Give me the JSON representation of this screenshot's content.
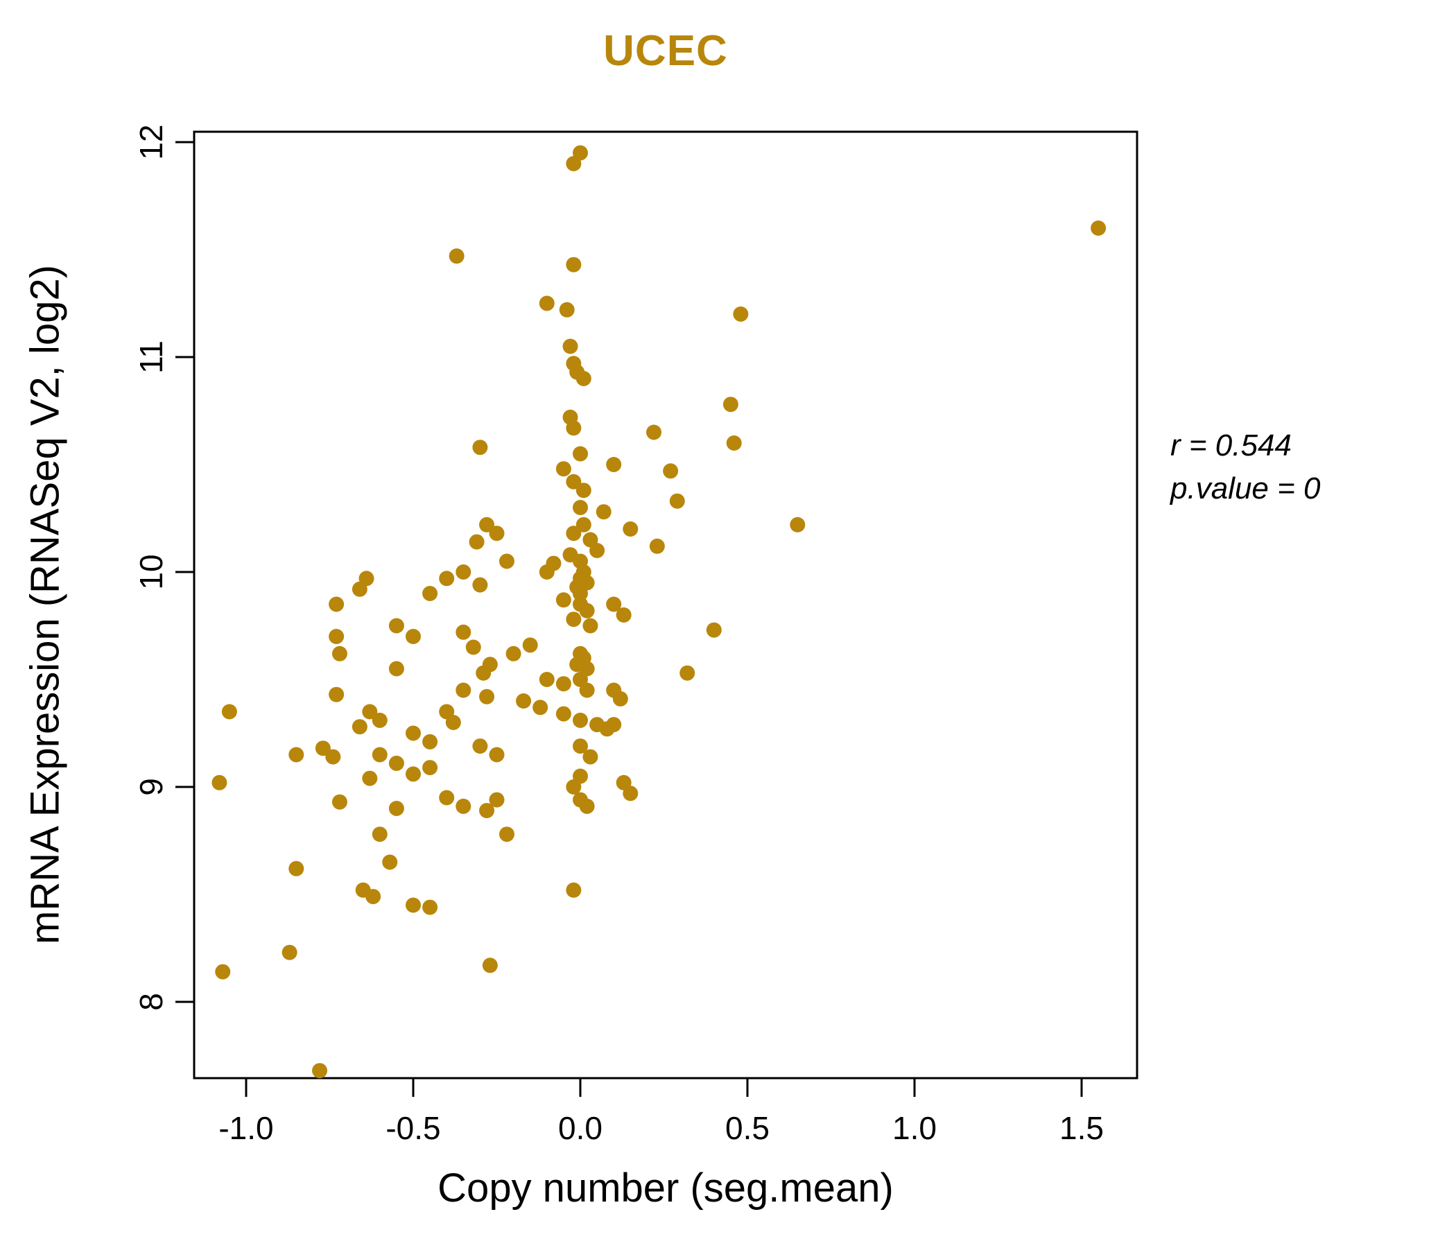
{
  "chart_data": {
    "type": "scatter",
    "title": "UCEC",
    "xlabel": "Copy number (seg.mean)",
    "ylabel": "mRNA Expression (RNASeq V2, log2)",
    "xlim": [
      -1.15,
      1.65
    ],
    "ylim": [
      7.6,
      12.05
    ],
    "x_ticks": [
      -1.0,
      -0.5,
      0.0,
      0.5,
      1.0,
      1.5
    ],
    "x_tick_labels": [
      "-1.0",
      "-0.5",
      "0.0",
      "0.5",
      "1.0",
      "1.5"
    ],
    "y_ticks": [
      8,
      9,
      10,
      11,
      12
    ],
    "y_tick_labels": [
      "8",
      "9",
      "10",
      "11",
      "12"
    ],
    "grid": false,
    "legend": "none",
    "point_color": "#B8860B",
    "title_color": "#B8860B",
    "annotations": [
      "r = 0.544",
      "p.value = 0"
    ],
    "points": [
      [
        0.0,
        11.95
      ],
      [
        -0.02,
        11.9
      ],
      [
        1.55,
        11.6
      ],
      [
        -0.37,
        11.47
      ],
      [
        -0.02,
        11.43
      ],
      [
        -0.1,
        11.25
      ],
      [
        -0.04,
        11.22
      ],
      [
        0.48,
        11.2
      ],
      [
        -0.03,
        11.05
      ],
      [
        -0.02,
        10.97
      ],
      [
        -0.01,
        10.93
      ],
      [
        0.01,
        10.9
      ],
      [
        0.45,
        10.78
      ],
      [
        -0.03,
        10.72
      ],
      [
        -0.02,
        10.67
      ],
      [
        0.22,
        10.65
      ],
      [
        0.46,
        10.6
      ],
      [
        -0.3,
        10.58
      ],
      [
        0.0,
        10.55
      ],
      [
        0.1,
        10.5
      ],
      [
        -0.05,
        10.48
      ],
      [
        0.27,
        10.47
      ],
      [
        -0.02,
        10.42
      ],
      [
        0.01,
        10.38
      ],
      [
        0.29,
        10.33
      ],
      [
        0.0,
        10.3
      ],
      [
        0.07,
        10.28
      ],
      [
        0.65,
        10.22
      ],
      [
        -0.28,
        10.22
      ],
      [
        -0.25,
        10.18
      ],
      [
        -0.31,
        10.14
      ],
      [
        0.01,
        10.22
      ],
      [
        -0.02,
        10.18
      ],
      [
        0.03,
        10.15
      ],
      [
        0.15,
        10.2
      ],
      [
        0.23,
        10.12
      ],
      [
        -0.22,
        10.05
      ],
      [
        -0.1,
        10.0
      ],
      [
        -0.08,
        10.04
      ],
      [
        -0.35,
        10.0
      ],
      [
        -0.64,
        9.97
      ],
      [
        -0.66,
        9.92
      ],
      [
        -0.4,
        9.97
      ],
      [
        -0.3,
        9.94
      ],
      [
        -0.03,
        10.08
      ],
      [
        0.05,
        10.1
      ],
      [
        0.0,
        10.05
      ],
      [
        0.01,
        10.0
      ],
      [
        0.0,
        9.97
      ],
      [
        0.02,
        9.95
      ],
      [
        -0.01,
        9.93
      ],
      [
        0.0,
        9.9
      ],
      [
        -0.73,
        9.85
      ],
      [
        -0.45,
        9.9
      ],
      [
        -0.05,
        9.87
      ],
      [
        0.0,
        9.85
      ],
      [
        0.02,
        9.82
      ],
      [
        0.1,
        9.85
      ],
      [
        0.13,
        9.8
      ],
      [
        -0.02,
        9.78
      ],
      [
        0.03,
        9.75
      ],
      [
        -0.55,
        9.75
      ],
      [
        -0.5,
        9.7
      ],
      [
        -0.35,
        9.72
      ],
      [
        -0.32,
        9.65
      ],
      [
        -0.73,
        9.7
      ],
      [
        -0.72,
        9.62
      ],
      [
        0.4,
        9.73
      ],
      [
        -0.2,
        9.62
      ],
      [
        -0.15,
        9.66
      ],
      [
        0.0,
        9.62
      ],
      [
        0.01,
        9.6
      ],
      [
        -0.01,
        9.57
      ],
      [
        0.02,
        9.55
      ],
      [
        -0.27,
        9.57
      ],
      [
        -0.29,
        9.53
      ],
      [
        -0.55,
        9.55
      ],
      [
        0.32,
        9.53
      ],
      [
        -0.1,
        9.5
      ],
      [
        -0.05,
        9.48
      ],
      [
        0.0,
        9.5
      ],
      [
        0.02,
        9.45
      ],
      [
        -0.35,
        9.45
      ],
      [
        -0.28,
        9.42
      ],
      [
        -0.73,
        9.43
      ],
      [
        -0.17,
        9.4
      ],
      [
        -0.12,
        9.37
      ],
      [
        0.1,
        9.45
      ],
      [
        0.12,
        9.41
      ],
      [
        -1.05,
        9.35
      ],
      [
        -0.63,
        9.35
      ],
      [
        -0.6,
        9.31
      ],
      [
        -0.4,
        9.35
      ],
      [
        -0.38,
        9.3
      ],
      [
        -0.05,
        9.34
      ],
      [
        0.0,
        9.31
      ],
      [
        0.05,
        9.29
      ],
      [
        0.08,
        9.27
      ],
      [
        -0.66,
        9.28
      ],
      [
        -0.5,
        9.25
      ],
      [
        -0.45,
        9.21
      ],
      [
        -0.3,
        9.19
      ],
      [
        -0.25,
        9.15
      ],
      [
        -0.77,
        9.18
      ],
      [
        -0.74,
        9.14
      ],
      [
        -0.6,
        9.15
      ],
      [
        -0.55,
        9.11
      ],
      [
        -0.85,
        9.15
      ],
      [
        0.0,
        9.19
      ],
      [
        0.03,
        9.14
      ],
      [
        0.1,
        9.29
      ],
      [
        -0.45,
        9.09
      ],
      [
        -0.5,
        9.06
      ],
      [
        -0.63,
        9.04
      ],
      [
        0.0,
        9.05
      ],
      [
        -0.02,
        9.0
      ],
      [
        -0.4,
        8.95
      ],
      [
        -0.35,
        8.91
      ],
      [
        -0.72,
        8.93
      ],
      [
        -0.25,
        8.94
      ],
      [
        -0.28,
        8.89
      ],
      [
        0.13,
        9.02
      ],
      [
        0.15,
        8.97
      ],
      [
        -1.08,
        9.02
      ],
      [
        -0.55,
        8.9
      ],
      [
        0.0,
        8.94
      ],
      [
        0.02,
        8.91
      ],
      [
        -0.6,
        8.78
      ],
      [
        -0.22,
        8.78
      ],
      [
        -0.57,
        8.65
      ],
      [
        -0.85,
        8.62
      ],
      [
        -0.65,
        8.52
      ],
      [
        -0.62,
        8.49
      ],
      [
        -0.5,
        8.45
      ],
      [
        -0.45,
        8.44
      ],
      [
        -0.02,
        8.52
      ],
      [
        -0.87,
        8.23
      ],
      [
        -0.27,
        8.17
      ],
      [
        -1.07,
        8.14
      ],
      [
        -0.78,
        7.68
      ]
    ]
  }
}
